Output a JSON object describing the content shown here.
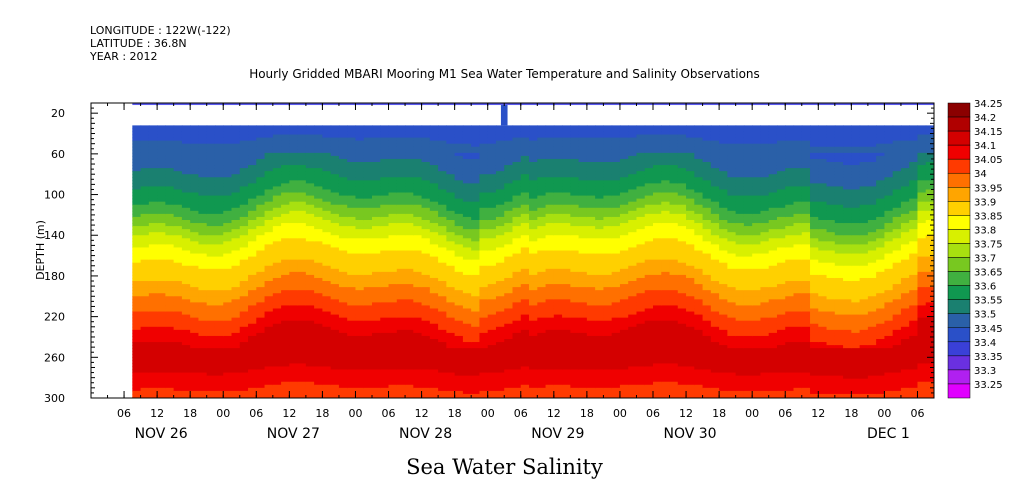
{
  "header": {
    "longitude": "LONGITUDE : 122W(-122)",
    "latitude": "LATITUDE : 36.8N",
    "year": "YEAR : 2012"
  },
  "title": "Hourly Gridded MBARI Mooring M1 Sea Water Temperature and Salinity Observations",
  "footer_title": "Sea Water Salinity",
  "colors": {
    "missing": "#ffffff",
    "shallow_band": "#5a5aee"
  },
  "chart_data": {
    "type": "heatmap",
    "title": "Hourly Gridded MBARI Mooring M1 Sea Water Temperature and Salinity Observations",
    "xlabel": "",
    "ylabel": "DEPTH (m)",
    "ylim": [
      300,
      10
    ],
    "x_hour_ticks": [
      "06",
      "12",
      "18",
      "00",
      "06",
      "12",
      "18",
      "00",
      "06",
      "12",
      "18",
      "00",
      "06",
      "12",
      "18",
      "00",
      "06",
      "12",
      "18",
      "00",
      "06",
      "12",
      "18",
      "00",
      "06"
    ],
    "x_hour_tick_hours": [
      6,
      12,
      18,
      24,
      30,
      36,
      42,
      48,
      54,
      60,
      66,
      72,
      78,
      84,
      90,
      96,
      102,
      108,
      114,
      120,
      126,
      132,
      138,
      144,
      150
    ],
    "x_day_labels": [
      "NOV 26",
      "NOV 27",
      "NOV 28",
      "NOV 29",
      "NOV 30",
      "DEC  1"
    ],
    "x_day_label_hours": [
      12,
      36,
      60,
      84,
      108,
      144
    ],
    "x_range_hours": [
      0,
      153
    ],
    "data_start_hour": 7.5,
    "y_ticks": [
      20,
      60,
      100,
      140,
      180,
      220,
      260,
      300
    ],
    "missing_until_depth": 32,
    "shallow_band_depth": [
      10,
      12
    ],
    "shallow_spike_hour": 75,
    "colorbar": {
      "levels": [
        {
          "label": "34.25",
          "color": "#8b0000"
        },
        {
          "label": "34.2",
          "color": "#b00000"
        },
        {
          "label": "34.15",
          "color": "#d40000"
        },
        {
          "label": "34.1",
          "color": "#f00000"
        },
        {
          "label": "34.05",
          "color": "#ff3a00"
        },
        {
          "label": "34",
          "color": "#ff7000"
        },
        {
          "label": "33.95",
          "color": "#ffa500"
        },
        {
          "label": "33.9",
          "color": "#ffd000"
        },
        {
          "label": "33.85",
          "color": "#ffff00"
        },
        {
          "label": "33.8",
          "color": "#d8f000"
        },
        {
          "label": "33.75",
          "color": "#a8e010"
        },
        {
          "label": "33.7",
          "color": "#78c820"
        },
        {
          "label": "33.65",
          "color": "#40b040"
        },
        {
          "label": "33.6",
          "color": "#109850"
        },
        {
          "label": "33.55",
          "color": "#1a8070"
        },
        {
          "label": "33.5",
          "color": "#2a60a8"
        },
        {
          "label": "33.45",
          "color": "#2a50c8"
        },
        {
          "label": "33.4",
          "color": "#3a40d8"
        },
        {
          "label": "33.35",
          "color": "#6a30e0"
        },
        {
          "label": "33.3",
          "color": "#b020f0"
        },
        {
          "label": "33.25",
          "color": "#e000ff"
        }
      ]
    },
    "profile": [
      {
        "depth": 32,
        "salinity": 33.48
      },
      {
        "depth": 60,
        "salinity": 33.52
      },
      {
        "depth": 80,
        "salinity": 33.58
      },
      {
        "depth": 100,
        "salinity": 33.63
      },
      {
        "depth": 120,
        "salinity": 33.72
      },
      {
        "depth": 140,
        "salinity": 33.83
      },
      {
        "depth": 160,
        "salinity": 33.9
      },
      {
        "depth": 180,
        "salinity": 33.95
      },
      {
        "depth": 200,
        "salinity": 34.02
      },
      {
        "depth": 220,
        "salinity": 34.08
      },
      {
        "depth": 240,
        "salinity": 34.15
      },
      {
        "depth": 260,
        "salinity": 34.2
      },
      {
        "depth": 280,
        "salinity": 34.12
      },
      {
        "depth": 300,
        "salinity": 34.08
      }
    ]
  }
}
